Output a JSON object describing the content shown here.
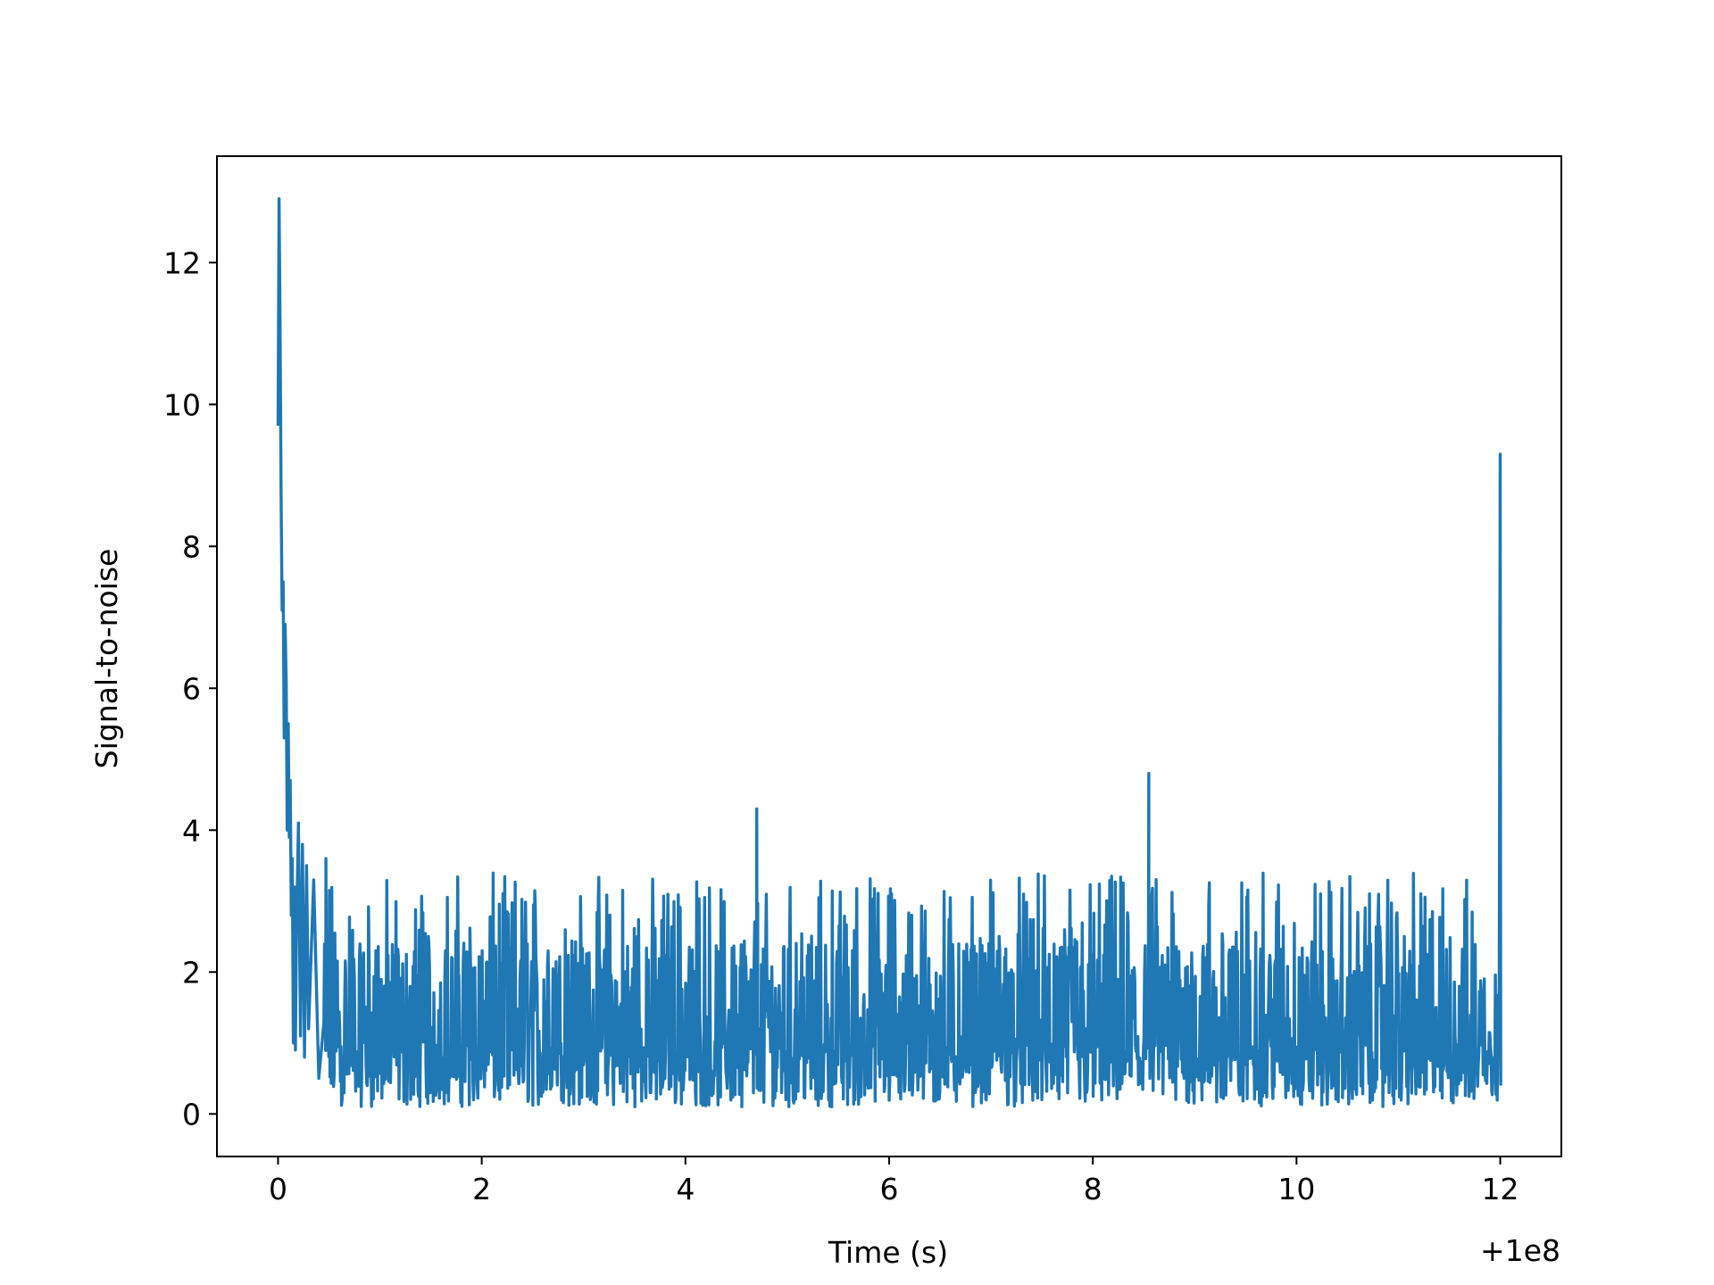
{
  "chart_data": {
    "type": "line",
    "xlabel": "Time (s)",
    "ylabel": "Signal-to-noise",
    "x_offset_label": "+1e8",
    "xlim": [
      -0.6,
      12.6
    ],
    "ylim": [
      -0.6,
      13.5
    ],
    "grid": false,
    "x_ticks": [
      {
        "value": 0,
        "label": "0"
      },
      {
        "value": 2,
        "label": "2"
      },
      {
        "value": 4,
        "label": "4"
      },
      {
        "value": 6,
        "label": "6"
      },
      {
        "value": 8,
        "label": "8"
      },
      {
        "value": 10,
        "label": "10"
      },
      {
        "value": 12,
        "label": "12"
      }
    ],
    "y_ticks": [
      {
        "value": 0,
        "label": "0"
      },
      {
        "value": 2,
        "label": "2"
      },
      {
        "value": 4,
        "label": "4"
      },
      {
        "value": 6,
        "label": "6"
      },
      {
        "value": 8,
        "label": "8"
      },
      {
        "value": 10,
        "label": "10"
      },
      {
        "value": 12,
        "label": "12"
      }
    ],
    "series": [
      {
        "color": "#1f77b4",
        "x": [
          0,
          0.01,
          0.02,
          0.03,
          0.04,
          0.05,
          0.06,
          0.07,
          0.08,
          0.09,
          0.1,
          0.11,
          0.12,
          0.13,
          0.14,
          0.15,
          0.16,
          0.17,
          0.18,
          0.2,
          0.22,
          0.24,
          0.26,
          0.28,
          0.3,
          0.35,
          0.4,
          0.47,
          4.7,
          4.71,
          4.72,
          8.55,
          8.56,
          8.57,
          11.99,
          12.0,
          12.005
        ],
        "y": [
          9.7,
          12.9,
          11.2,
          8.7,
          7.1,
          7.5,
          5.3,
          6.9,
          6.1,
          4.0,
          5.5,
          3.9,
          4.7,
          2.8,
          3.6,
          1.0,
          3.2,
          0.9,
          2.5,
          4.1,
          1.1,
          3.8,
          0.8,
          3.5,
          1.2,
          3.3,
          0.5,
          3.6,
          4.3,
          0.6,
          1.2,
          4.8,
          0.5,
          1.1,
          1.8,
          9.3,
          0.4
        ]
      }
    ],
    "noise_band": {
      "x_start": 0.45,
      "x_end": 11.98,
      "typical_min": 0.1,
      "typical_max": 3.4
    }
  }
}
